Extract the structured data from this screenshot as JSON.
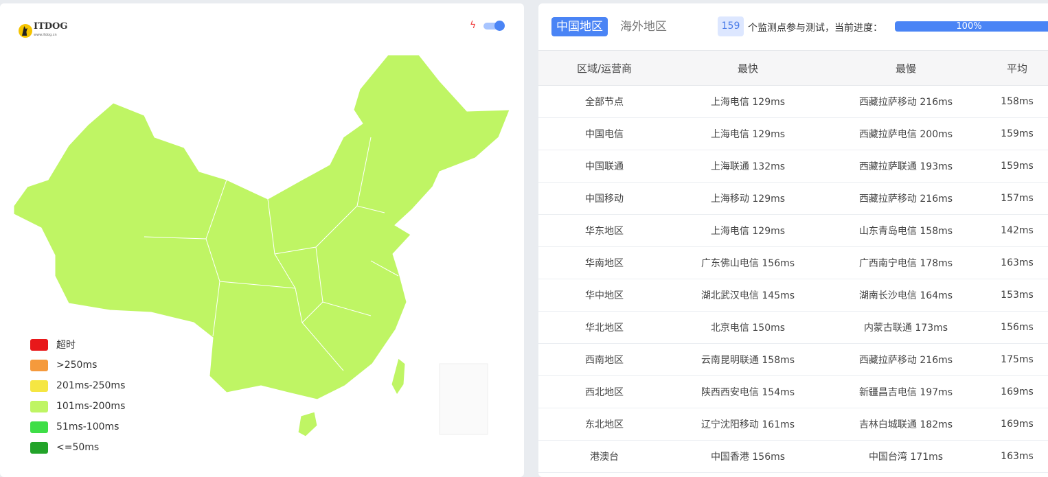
{
  "logo": {
    "text": "ITDOG",
    "sub": "www.itdog.cn"
  },
  "legend": [
    {
      "label": "超时",
      "color": "#e8181a"
    },
    {
      "label": ">250ms",
      "color": "#f59a3c"
    },
    {
      "label": "201ms-250ms",
      "color": "#f5e642"
    },
    {
      "label": "101ms-200ms",
      "color": "#bff564"
    },
    {
      "label": "51ms-100ms",
      "color": "#3ede47"
    },
    {
      "label": "<=50ms",
      "color": "#22a329"
    }
  ],
  "map": {
    "fill": "#bff564",
    "toggle_on": true
  },
  "tabs": [
    {
      "label": "中国地区",
      "active": true
    },
    {
      "label": "海外地区",
      "active": false
    }
  ],
  "progress": {
    "count": "159",
    "text": "个监测点参与测试，当前进度：",
    "percent_label": "100%",
    "value": 100
  },
  "table": {
    "headers": [
      "区域/运营商",
      "最快",
      "最慢",
      "平均"
    ],
    "rows": [
      [
        "全部节点",
        "上海电信 129ms",
        "西藏拉萨移动 216ms",
        "158ms"
      ],
      [
        "中国电信",
        "上海电信 129ms",
        "西藏拉萨电信 200ms",
        "159ms"
      ],
      [
        "中国联通",
        "上海联通 132ms",
        "西藏拉萨联通 193ms",
        "159ms"
      ],
      [
        "中国移动",
        "上海移动 129ms",
        "西藏拉萨移动 216ms",
        "157ms"
      ],
      [
        "华东地区",
        "上海电信 129ms",
        "山东青岛电信 158ms",
        "142ms"
      ],
      [
        "华南地区",
        "广东佛山电信 156ms",
        "广西南宁电信 178ms",
        "163ms"
      ],
      [
        "华中地区",
        "湖北武汉电信 145ms",
        "湖南长沙电信 164ms",
        "153ms"
      ],
      [
        "华北地区",
        "北京电信 150ms",
        "内蒙古联通 173ms",
        "156ms"
      ],
      [
        "西南地区",
        "云南昆明联通 158ms",
        "西藏拉萨移动 216ms",
        "175ms"
      ],
      [
        "西北地区",
        "陕西西安电信 154ms",
        "新疆昌吉电信 197ms",
        "169ms"
      ],
      [
        "东北地区",
        "辽宁沈阳移动 161ms",
        "吉林白城联通 182ms",
        "169ms"
      ],
      [
        "港澳台",
        "中国香港 156ms",
        "中国台湾 171ms",
        "163ms"
      ]
    ]
  }
}
